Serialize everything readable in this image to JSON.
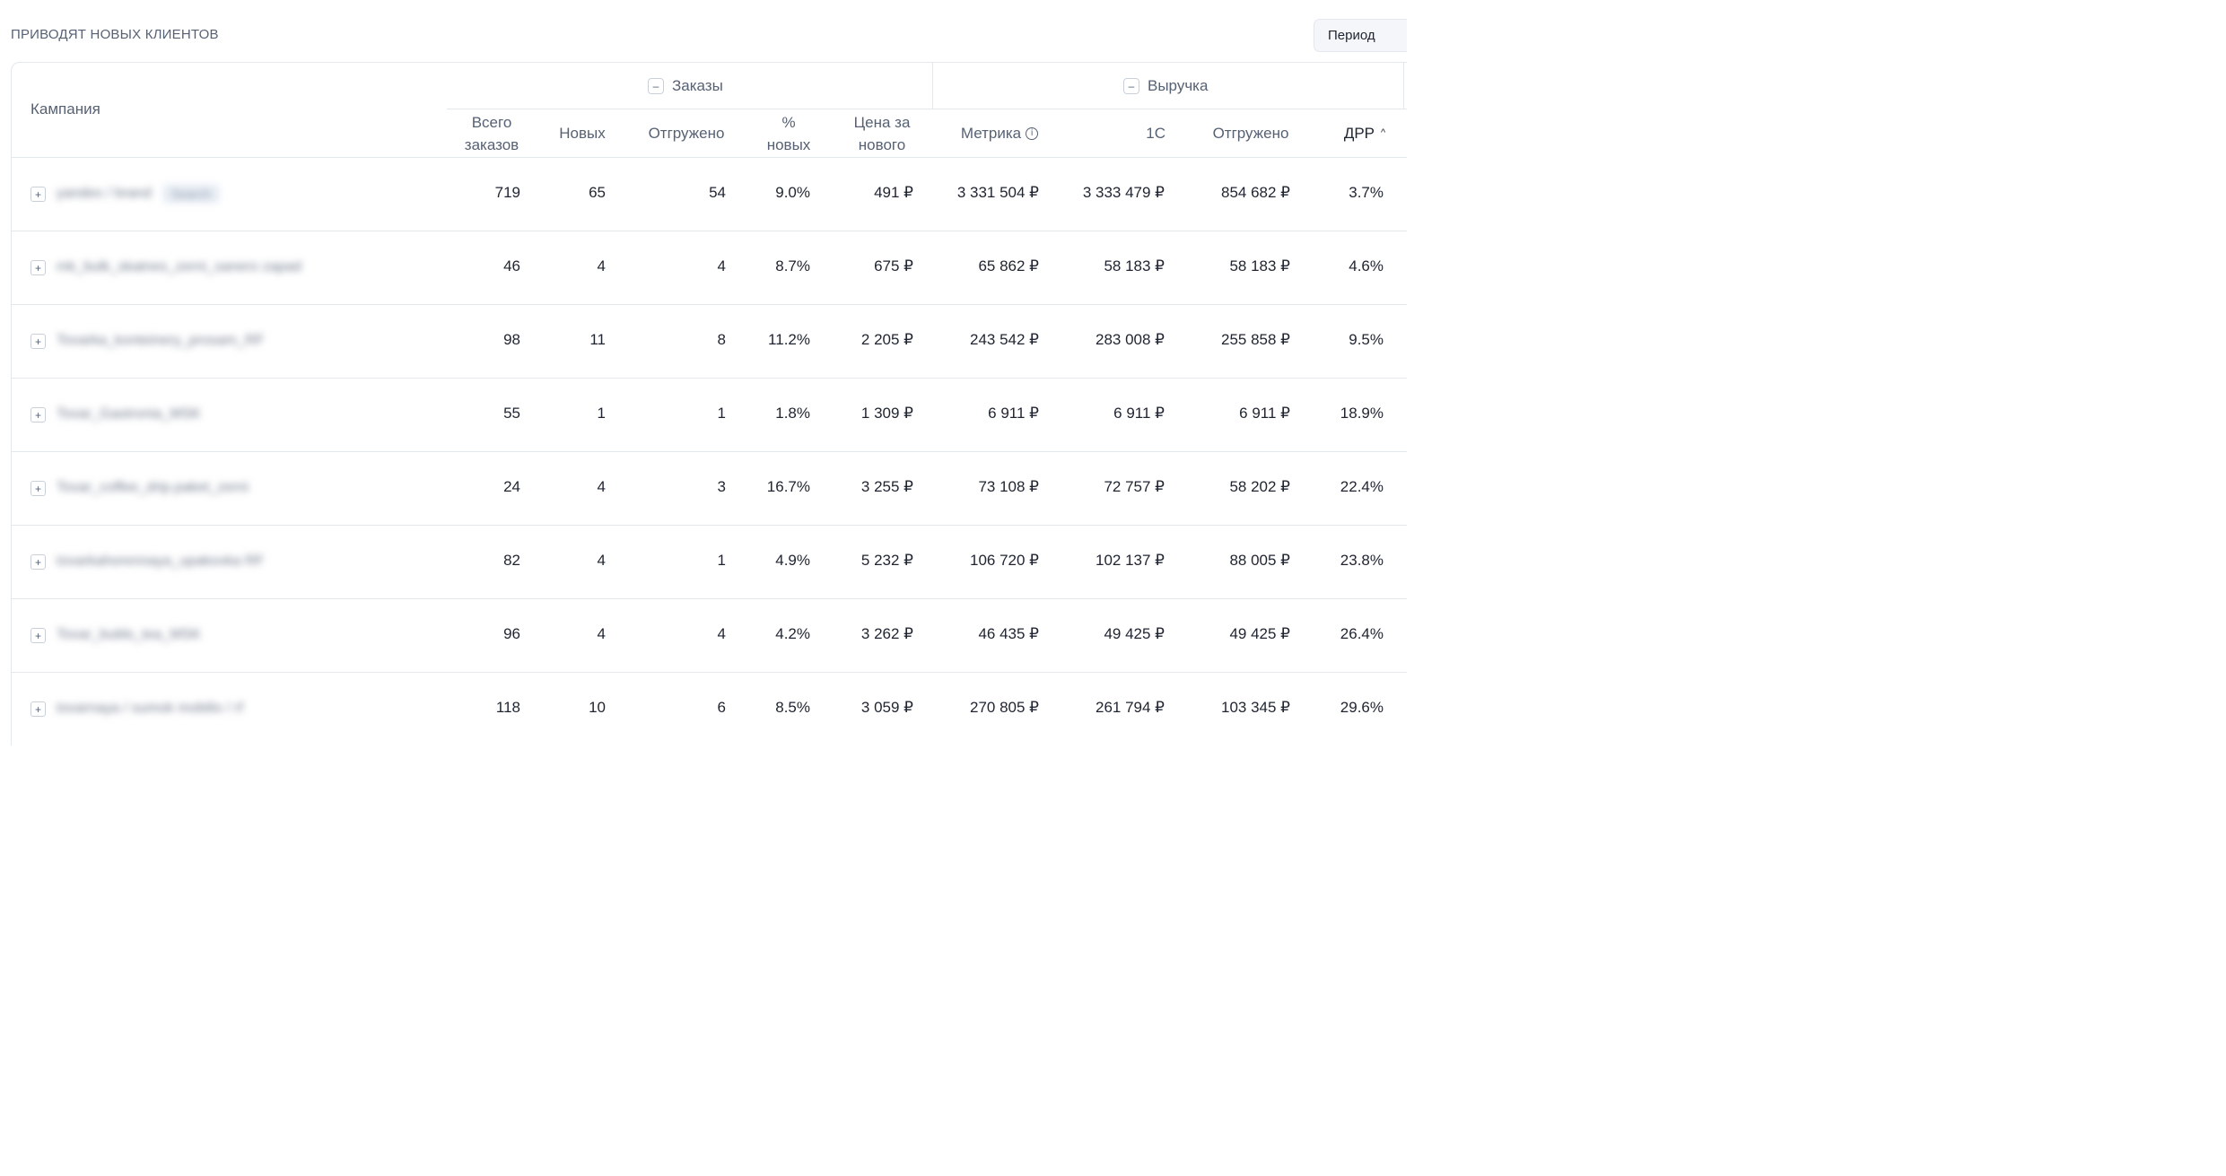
{
  "section_title": "ПРИВОДЯТ НОВЫХ КЛИЕНТОВ",
  "period_button": "Период",
  "table": {
    "campaign_header": "Кампания",
    "groups": [
      {
        "label": "Заказы",
        "toggle": "–"
      },
      {
        "label": "Выручка",
        "toggle": "–"
      }
    ],
    "columns": [
      {
        "key": "total",
        "label": "Всего заказов"
      },
      {
        "key": "new",
        "label": "Новых"
      },
      {
        "key": "shipped",
        "label": "Отгружено"
      },
      {
        "key": "pct_new",
        "label": "% новых"
      },
      {
        "key": "price_new",
        "label": "Цена за нового"
      },
      {
        "key": "metrika",
        "label": "Метрика",
        "info_icon": "info-icon"
      },
      {
        "key": "onec",
        "label": "1С"
      },
      {
        "key": "shipped_rev",
        "label": "Отгружено"
      },
      {
        "key": "drr",
        "label": "ДРР",
        "sort": "ascending",
        "sort_glyph": "^"
      }
    ],
    "expand_glyph": "+",
    "rows": [
      {
        "campaign": "yandex / brand",
        "tag": "Search",
        "total": "719",
        "new": "65",
        "shipped": "54",
        "pct_new": "9.0%",
        "price_new": "491 ₽",
        "metrika": "3 331 504 ₽",
        "onec": "3 333 479 ₽",
        "shipped_rev": "854 682 ₽",
        "drr": "3.7%"
      },
      {
        "campaign": "mk_bulk_skatnes_zerni_sanero zapad",
        "tag": "",
        "total": "46",
        "new": "4",
        "shipped": "4",
        "pct_new": "8.7%",
        "price_new": "675 ₽",
        "metrika": "65 862 ₽",
        "onec": "58 183 ₽",
        "shipped_rev": "58 183 ₽",
        "drr": "4.6%"
      },
      {
        "campaign": "Tovarka_konteinery_prosam_RF",
        "tag": "",
        "total": "98",
        "new": "11",
        "shipped": "8",
        "pct_new": "11.2%",
        "price_new": "2 205 ₽",
        "metrika": "243 542 ₽",
        "onec": "283 008 ₽",
        "shipped_rev": "255 858 ₽",
        "drr": "9.5%"
      },
      {
        "campaign": "Tovar_Gastronia_MSK",
        "tag": "",
        "total": "55",
        "new": "1",
        "shipped": "1",
        "pct_new": "1.8%",
        "price_new": "1 309 ₽",
        "metrika": "6 911 ₽",
        "onec": "6 911 ₽",
        "shipped_rev": "6 911 ₽",
        "drr": "18.9%"
      },
      {
        "campaign": "Tovar_coffee_drip.paket_zerni",
        "tag": "",
        "total": "24",
        "new": "4",
        "shipped": "3",
        "pct_new": "16.7%",
        "price_new": "3 255 ₽",
        "metrika": "73 108 ₽",
        "onec": "72 757 ₽",
        "shipped_rev": "58 202 ₽",
        "drr": "22.4%"
      },
      {
        "campaign": "tovarkahorennaya_upakovka RF",
        "tag": "",
        "total": "82",
        "new": "4",
        "shipped": "1",
        "pct_new": "4.9%",
        "price_new": "5 232 ₽",
        "metrika": "106 720 ₽",
        "onec": "102 137 ₽",
        "shipped_rev": "88 005 ₽",
        "drr": "23.8%"
      },
      {
        "campaign": "Tovar_bubls_tea_MSK",
        "tag": "",
        "total": "96",
        "new": "4",
        "shipped": "4",
        "pct_new": "4.2%",
        "price_new": "3 262 ₽",
        "metrika": "46 435 ₽",
        "onec": "49 425 ₽",
        "shipped_rev": "49 425 ₽",
        "drr": "26.4%"
      },
      {
        "campaign": "tovarnaya / sumok mobilix / rf",
        "tag": "",
        "total": "118",
        "new": "10",
        "shipped": "6",
        "pct_new": "8.5%",
        "price_new": "3 059 ₽",
        "metrika": "270 805 ₽",
        "onec": "261 794 ₽",
        "shipped_rev": "103 345 ₽",
        "drr": "29.6%"
      }
    ]
  }
}
